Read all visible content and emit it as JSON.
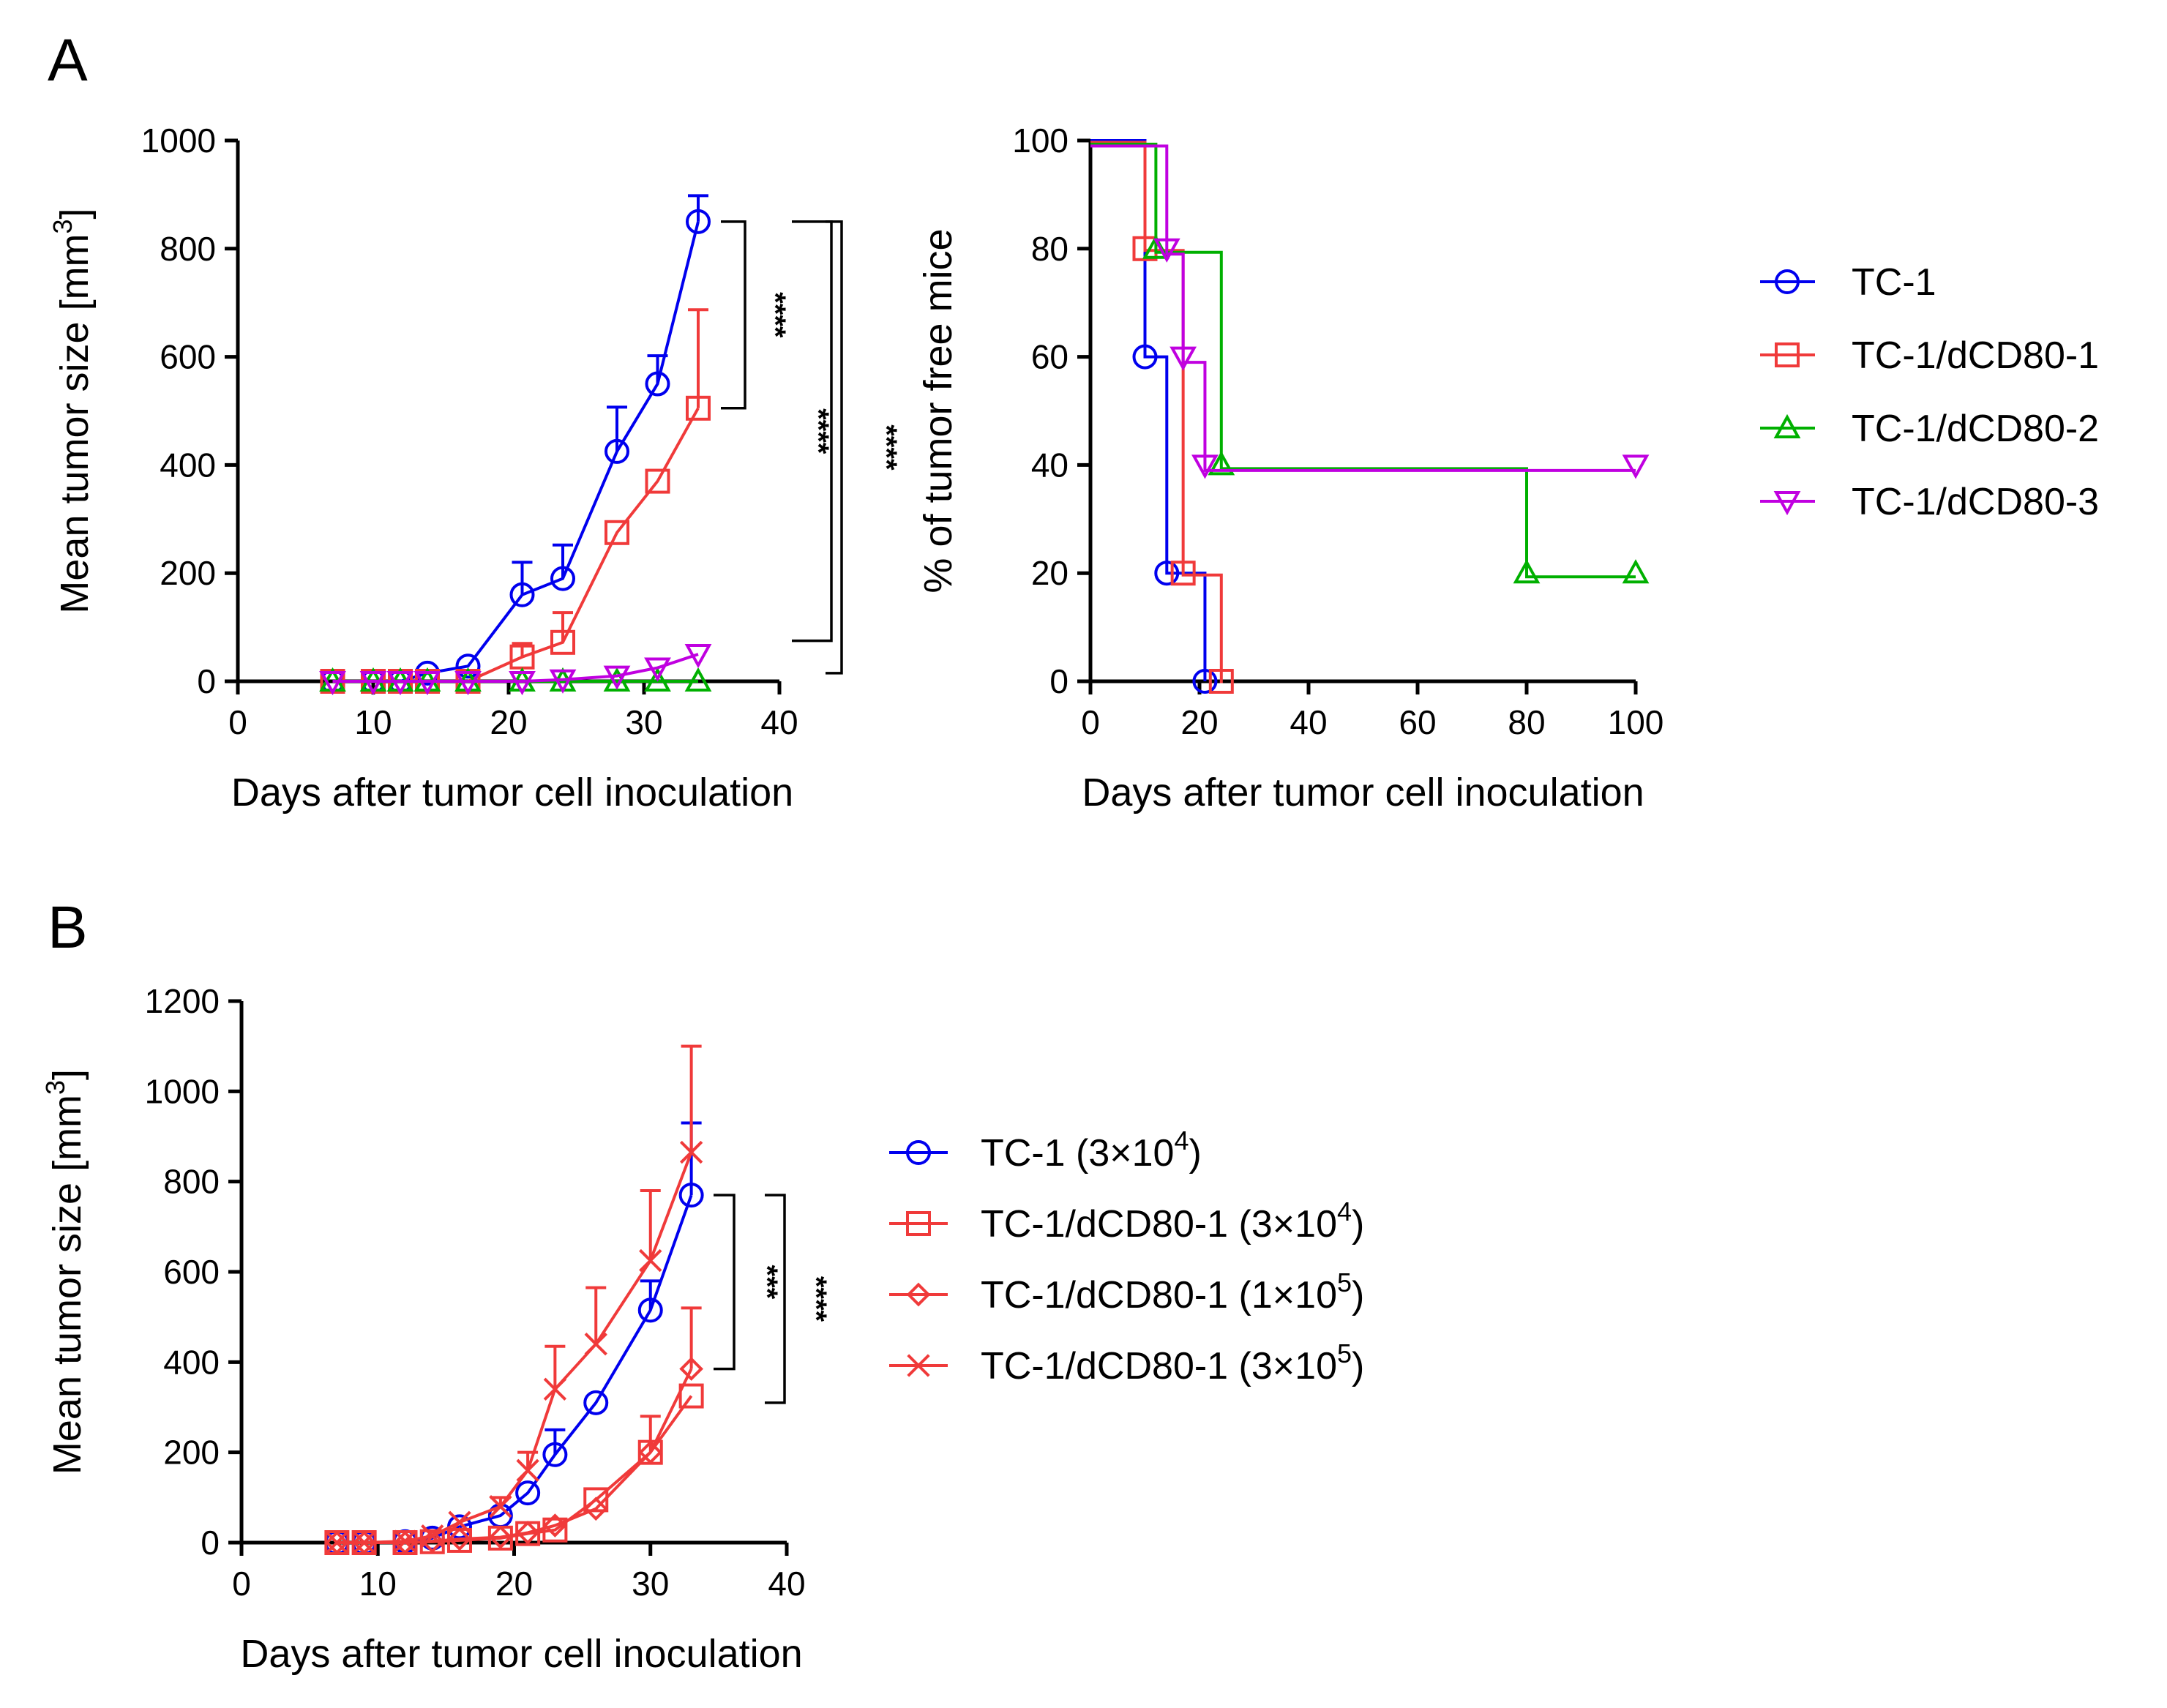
{
  "panels": {
    "a": "A",
    "b": "B"
  },
  "colors": {
    "blue": "#0000ee",
    "red": "#f03a3a",
    "green": "#00b000",
    "magenta": "#c000e0"
  },
  "chart_data": [
    {
      "id": "A-left",
      "type": "line",
      "title": "",
      "xlabel": "Days after tumor cell inoculation",
      "ylabel": "Mean tumor size [mm",
      "ylabel_sup": "3",
      "ylabel_end": "]",
      "xlim": [
        0,
        40
      ],
      "ylim": [
        0,
        1000
      ],
      "xticks": [
        "0",
        "10",
        "20",
        "30",
        "40"
      ],
      "yticks": [
        "0",
        "200",
        "400",
        "600",
        "800",
        "1000"
      ],
      "series": [
        {
          "name": "TC-1",
          "color": "#0000ee",
          "marker": "circle",
          "x": [
            7,
            10,
            12,
            14,
            17,
            21,
            24,
            28,
            31,
            34
          ],
          "y": [
            0,
            0,
            0,
            15,
            28,
            160,
            190,
            425,
            550,
            850
          ],
          "err": [
            0,
            0,
            0,
            0,
            0,
            60,
            62,
            82,
            52,
            48
          ]
        },
        {
          "name": "TC-1/dCD80-1",
          "color": "#f03a3a",
          "marker": "square",
          "x": [
            7,
            10,
            12,
            14,
            17,
            21,
            24,
            28,
            31,
            34
          ],
          "y": [
            0,
            0,
            0,
            0,
            0,
            45,
            72,
            275,
            370,
            505
          ],
          "err": [
            0,
            0,
            0,
            0,
            0,
            25,
            55,
            0,
            0,
            182
          ]
        },
        {
          "name": "TC-1/dCD80-2",
          "color": "#00b000",
          "marker": "triangle-up",
          "x": [
            7,
            10,
            12,
            14,
            17,
            21,
            24,
            28,
            31,
            34
          ],
          "y": [
            0,
            0,
            0,
            0,
            0,
            0,
            0,
            0,
            0,
            0
          ],
          "err": [
            0,
            0,
            0,
            0,
            0,
            0,
            0,
            0,
            0,
            0
          ]
        },
        {
          "name": "TC-1/dCD80-3",
          "color": "#c000e0",
          "marker": "triangle-down",
          "x": [
            7,
            10,
            12,
            14,
            17,
            21,
            24,
            28,
            31,
            34
          ],
          "y": [
            0,
            0,
            0,
            0,
            0,
            0,
            3,
            10,
            25,
            50
          ],
          "err": [
            0,
            0,
            0,
            0,
            0,
            0,
            0,
            0,
            0,
            0
          ]
        }
      ],
      "significance": [
        {
          "label": "****",
          "from": "TC-1",
          "to": "TC-1/dCD80-1",
          "y_top": 850,
          "y_bottom": 505
        },
        {
          "label": "****",
          "from": "TC-1",
          "to": "TC-1/dCD80-3",
          "y_top": 850,
          "y_bottom": 75
        },
        {
          "label": "****",
          "from": "TC-1",
          "to": "TC-1/dCD80-2",
          "y_top": 850,
          "y_bottom": 15
        }
      ]
    },
    {
      "id": "A-right",
      "type": "line",
      "title": "",
      "xlabel": "Days after tumor cell inoculation",
      "ylabel": "% of tumor free mice",
      "xlim": [
        0,
        100
      ],
      "ylim": [
        0,
        100
      ],
      "xticks": [
        "0",
        "20",
        "40",
        "60",
        "80",
        "100"
      ],
      "yticks": [
        "0",
        "20",
        "40",
        "60",
        "80",
        "100"
      ],
      "series": [
        {
          "name": "TC-1",
          "color": "#0000ee",
          "marker": "circle",
          "steps_x": [
            0,
            10,
            14,
            21
          ],
          "steps_y": [
            100,
            60,
            20,
            0
          ],
          "markers": [
            [
              10,
              60
            ],
            [
              14,
              20
            ],
            [
              21,
              0
            ]
          ]
        },
        {
          "name": "TC-1/dCD80-1",
          "color": "#f03a3a",
          "marker": "square",
          "steps_x": [
            0,
            10,
            17,
            24
          ],
          "steps_y": [
            100,
            80,
            20,
            0
          ],
          "markers": [
            [
              10,
              80
            ],
            [
              17,
              20
            ],
            [
              24,
              0
            ]
          ]
        },
        {
          "name": "TC-1/dCD80-2",
          "color": "#00b000",
          "marker": "triangle-up",
          "steps_x": [
            0,
            12,
            24,
            80,
            100
          ],
          "steps_y": [
            100,
            80,
            40,
            20,
            20
          ],
          "markers": [
            [
              12,
              80
            ],
            [
              24,
              40
            ],
            [
              80,
              20
            ],
            [
              100,
              20
            ]
          ]
        },
        {
          "name": "TC-1/dCD80-3",
          "color": "#c000e0",
          "marker": "triangle-down",
          "steps_x": [
            0,
            14,
            17,
            21,
            100
          ],
          "steps_y": [
            100,
            80,
            60,
            40,
            40
          ],
          "markers": [
            [
              14,
              80
            ],
            [
              17,
              60
            ],
            [
              21,
              40
            ],
            [
              100,
              40
            ]
          ]
        }
      ],
      "legend": [
        "TC-1",
        "TC-1/dCD80-1",
        "TC-1/dCD80-2",
        "TC-1/dCD80-3"
      ],
      "legend_placement": "right"
    },
    {
      "id": "B",
      "type": "line",
      "title": "",
      "xlabel": "Days after tumor cell inoculation",
      "ylabel": "Mean tumor size [mm",
      "ylabel_sup": "3",
      "ylabel_end": "]",
      "xlim": [
        0,
        40
      ],
      "ylim": [
        0,
        1200
      ],
      "xticks": [
        "0",
        "10",
        "20",
        "30",
        "40"
      ],
      "yticks": [
        "0",
        "200",
        "400",
        "600",
        "800",
        "1000",
        "1200"
      ],
      "series": [
        {
          "name": "TC-1 (3×10",
          "sup": "4",
          "end": ")",
          "color": "#0000ee",
          "marker": "circle",
          "x": [
            7,
            9,
            12,
            14,
            16,
            19,
            21,
            23,
            26,
            30,
            33
          ],
          "y": [
            0,
            0,
            2,
            10,
            35,
            60,
            110,
            195,
            310,
            515,
            770
          ],
          "err": [
            0,
            0,
            0,
            0,
            0,
            0,
            0,
            55,
            0,
            65,
            160
          ]
        },
        {
          "name": "TC-1/dCD80-1 (3×10",
          "sup": "4",
          "end": ")",
          "color": "#f03a3a",
          "marker": "square",
          "x": [
            7,
            9,
            12,
            14,
            16,
            19,
            21,
            23,
            26,
            30,
            33
          ],
          "y": [
            0,
            0,
            0,
            2,
            5,
            10,
            20,
            28,
            95,
            200,
            325
          ],
          "err": [
            0,
            0,
            0,
            0,
            0,
            0,
            0,
            0,
            0,
            0,
            0
          ]
        },
        {
          "name": "TC-1/dCD80-1 (1×10",
          "sup": "5",
          "end": ")",
          "color": "#f03a3a",
          "marker": "diamond",
          "x": [
            7,
            9,
            12,
            14,
            16,
            19,
            21,
            23,
            26,
            30,
            33
          ],
          "y": [
            0,
            0,
            0,
            3,
            8,
            12,
            22,
            38,
            75,
            200,
            385
          ],
          "err": [
            0,
            0,
            0,
            0,
            0,
            0,
            0,
            0,
            0,
            80,
            135
          ]
        },
        {
          "name": "TC-1/dCD80-1 (3×10",
          "sup": "5",
          "end": ")",
          "color": "#f03a3a",
          "marker": "cross",
          "x": [
            7,
            9,
            12,
            14,
            16,
            19,
            21,
            23,
            26,
            30,
            33
          ],
          "y": [
            0,
            0,
            3,
            15,
            45,
            80,
            160,
            340,
            440,
            625,
            865
          ],
          "err": [
            0,
            0,
            0,
            0,
            0,
            20,
            40,
            95,
            125,
            155,
            235
          ]
        }
      ],
      "significance": [
        {
          "label": "***",
          "from": "TC-1 (3×10^4)",
          "to": "TC-1/dCD80-1 (1×10^5)",
          "y_top": 770,
          "y_bottom": 385
        },
        {
          "label": "****",
          "from": "TC-1 (3×10^4)",
          "to": "TC-1/dCD80-1 (3×10^4)",
          "y_top": 770,
          "y_bottom": 310
        }
      ],
      "legend_placement": "right"
    }
  ]
}
